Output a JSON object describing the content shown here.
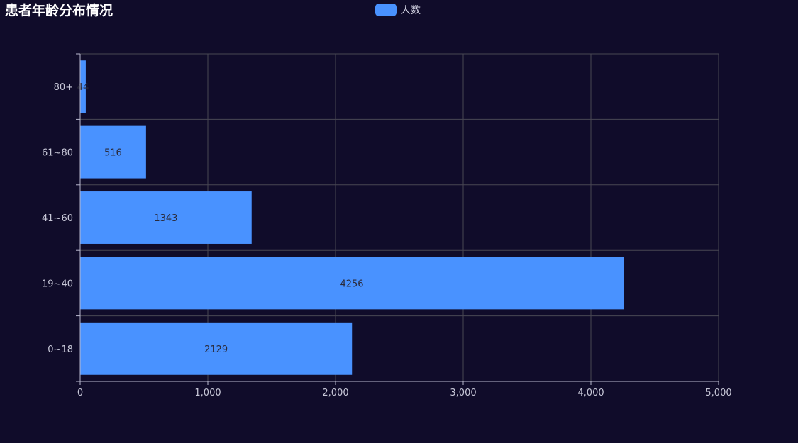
{
  "chart_data": {
    "type": "bar",
    "orientation": "horizontal",
    "title": "患者年龄分布情况",
    "categories": [
      "0~18",
      "19~40",
      "41~60",
      "61~80",
      "80+"
    ],
    "series": [
      {
        "name": "人数",
        "values": [
          2129,
          4256,
          1343,
          516,
          44
        ]
      }
    ],
    "xlim": [
      0,
      5000
    ],
    "x_ticks": [
      "0",
      "1,000",
      "2,000",
      "3,000",
      "4,000",
      "5,000"
    ],
    "x_tick_values": [
      0,
      1000,
      2000,
      3000,
      4000,
      5000
    ],
    "grid": true,
    "legend_position": "top-center",
    "data_labels": true
  },
  "colors": {
    "background": "#100c2a",
    "bar": "#4992ff",
    "grid": "#484753",
    "axis": "#b9b8ce"
  }
}
